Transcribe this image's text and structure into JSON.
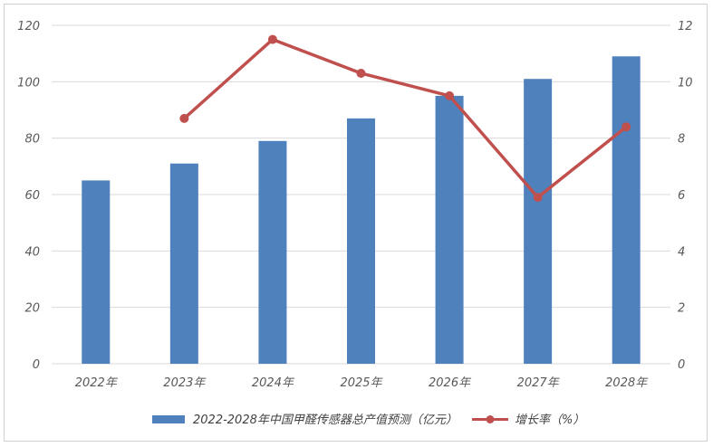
{
  "chart_data": {
    "type": "bar+line",
    "categories": [
      "2022年",
      "2023年",
      "2024年",
      "2025年",
      "2026年",
      "2027年",
      "2028年"
    ],
    "series": [
      {
        "name": "2022-2028年中国甲醛传感器总产值预测（亿元）",
        "type": "bar",
        "axis": "left",
        "values": [
          65,
          71,
          79,
          87,
          95,
          101,
          109
        ],
        "color": "#4F81BD"
      },
      {
        "name": "增长率（%）",
        "type": "line",
        "axis": "right",
        "values": [
          null,
          8.7,
          11.5,
          10.3,
          9.5,
          5.9,
          8.4
        ],
        "color": "#C0504D"
      }
    ],
    "yleft": {
      "min": 0,
      "max": 120,
      "step": 20,
      "ticks": [
        "0",
        "20",
        "40",
        "60",
        "80",
        "100",
        "120"
      ]
    },
    "yright": {
      "min": 0,
      "max": 12,
      "step": 2,
      "ticks": [
        "0",
        "2",
        "4",
        "6",
        "8",
        "10",
        "12"
      ]
    },
    "grid": true,
    "legend": "bottom"
  }
}
